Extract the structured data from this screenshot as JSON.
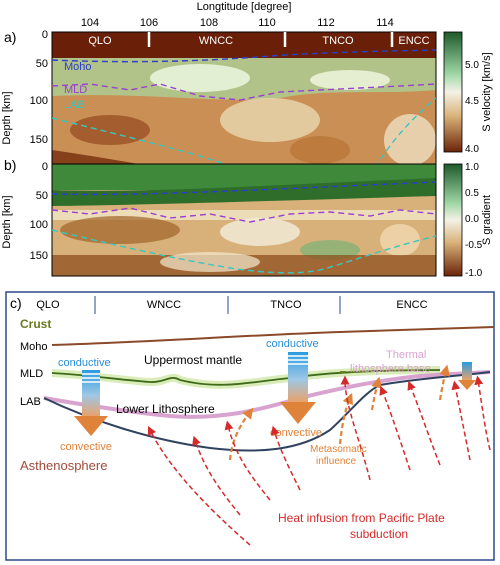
{
  "panel_a": {
    "label": "a)",
    "x_axis_title": "Longtitude [degree]",
    "x_ticks": [
      "104",
      "106",
      "108",
      "110",
      "112",
      "114"
    ],
    "y_title": "Depth [km]",
    "y_ticks": [
      "0",
      "50",
      "100",
      "150"
    ],
    "regions": [
      "QLO",
      "WNCC",
      "TNCO",
      "ENCC"
    ],
    "lines": {
      "moho": "Moho",
      "mld": "MLD",
      "lab": "LAB"
    },
    "colorbar_title": "S velocity [km/s]",
    "colorbar_ticks": [
      "5.0",
      "4.5",
      "4.0"
    ]
  },
  "panel_b": {
    "label": "b)",
    "y_title": "Depth [km]",
    "y_ticks": [
      "0",
      "50",
      "100",
      "150"
    ],
    "colorbar_title": "S gradient",
    "colorbar_ticks": [
      "1.0",
      "0.5",
      "0.0",
      "-0.5",
      "-1.0"
    ]
  },
  "panel_c": {
    "label": "c)",
    "regions": [
      "QLO",
      "WNCC",
      "TNCO",
      "ENCC"
    ],
    "crust": "Crust",
    "moho": "Moho",
    "mld": "MLD",
    "lab": "LAB",
    "uppermost_mantle": "Uppermost mantle",
    "lower_lithosphere": "Lower Lithosphere",
    "asthenosphere": "Asthenosphere",
    "conductive_1": "conductive",
    "convective_1": "convective",
    "conductive_2": "conductive",
    "convective_2": "convective",
    "thermal_base_1": "Thermal",
    "thermal_base_2": "lithosphere base",
    "metasomatic_1": "Metasomatic",
    "metasomatic_2": "influence",
    "heat_1": "Heat infusion from Pacific Plate",
    "heat_2": "subduction"
  },
  "colors": {
    "moho_line": "#2b3fc8",
    "mld_line": "#9a3fd0",
    "lab_line": "#39c6c0",
    "crust_line": "#8a4a2a",
    "mld_green": "#3f6b1a",
    "lab_pink": "#d9a3cf",
    "slab": "#2f4260",
    "heat_arrow": "#d42a2a",
    "convect_arrow": "#e0833a",
    "conduct_blue": "#2a8fd6",
    "crust_label": "#6b7a1e",
    "astheno_label": "#a34a3a",
    "frame": "#2d4a8a"
  }
}
